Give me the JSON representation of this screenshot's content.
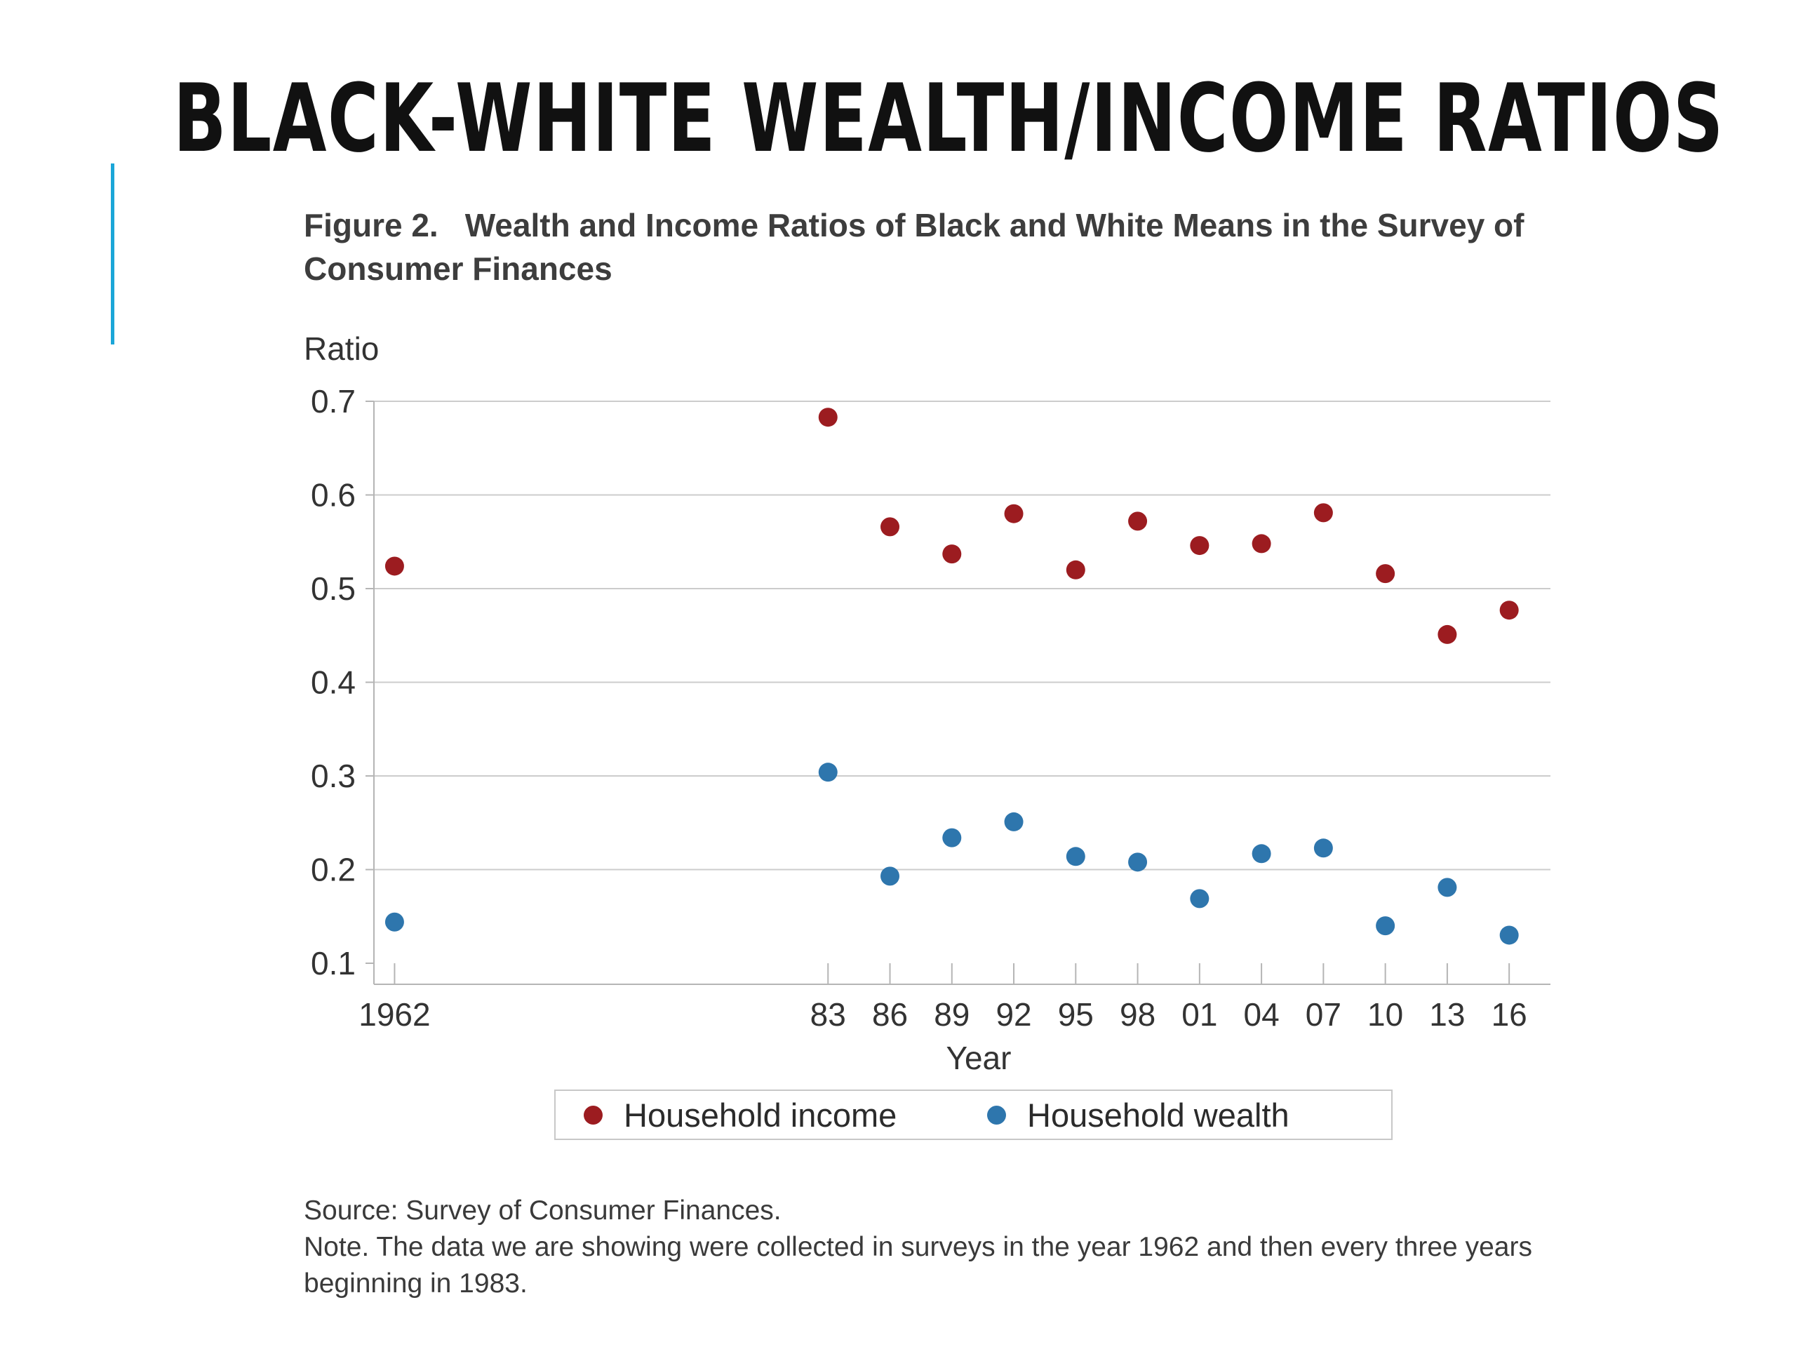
{
  "slide": {
    "title": "BLACK-WHITE WEALTH/INCOME RATIOS",
    "accent_color": "#1ba6d8"
  },
  "figure": {
    "number": "Figure 2.",
    "title": "Wealth and Income Ratios of Black and White Means in the Survey of Consumer Finances",
    "source": "Source: Survey of Consumer Finances.",
    "note": "Note. The data we are showing were collected in surveys in the year 1962 and then every three years beginning in 1983."
  },
  "chart_data": {
    "type": "scatter",
    "title": "Wealth and Income Ratios of Black and White Means in the Survey of Consumer Finances",
    "xlabel": "Year",
    "ylabel": "Ratio",
    "categories": [
      "1962",
      "83",
      "86",
      "89",
      "92",
      "95",
      "98",
      "01",
      "04",
      "07",
      "10",
      "13",
      "16"
    ],
    "x": [
      1962,
      1983,
      1986,
      1989,
      1992,
      1995,
      1998,
      2001,
      2004,
      2007,
      2010,
      2013,
      2016
    ],
    "xlim": [
      1961,
      2018
    ],
    "ylim": [
      0.1,
      0.7
    ],
    "yticks": [
      "0.1",
      "0.2",
      "0.3",
      "0.4",
      "0.5",
      "0.6",
      "0.7"
    ],
    "grid": "horizontal",
    "legend_position": "bottom",
    "series": [
      {
        "name": "Household income",
        "color": "#9c1c20",
        "values": [
          0.524,
          0.683,
          0.566,
          0.537,
          0.58,
          0.52,
          0.572,
          0.546,
          0.548,
          0.581,
          0.516,
          0.451,
          0.477
        ]
      },
      {
        "name": "Household wealth",
        "color": "#2e76ad",
        "values": [
          0.144,
          0.304,
          0.193,
          0.234,
          0.251,
          0.214,
          0.208,
          0.169,
          0.217,
          0.223,
          0.14,
          0.181,
          0.13
        ]
      }
    ]
  }
}
